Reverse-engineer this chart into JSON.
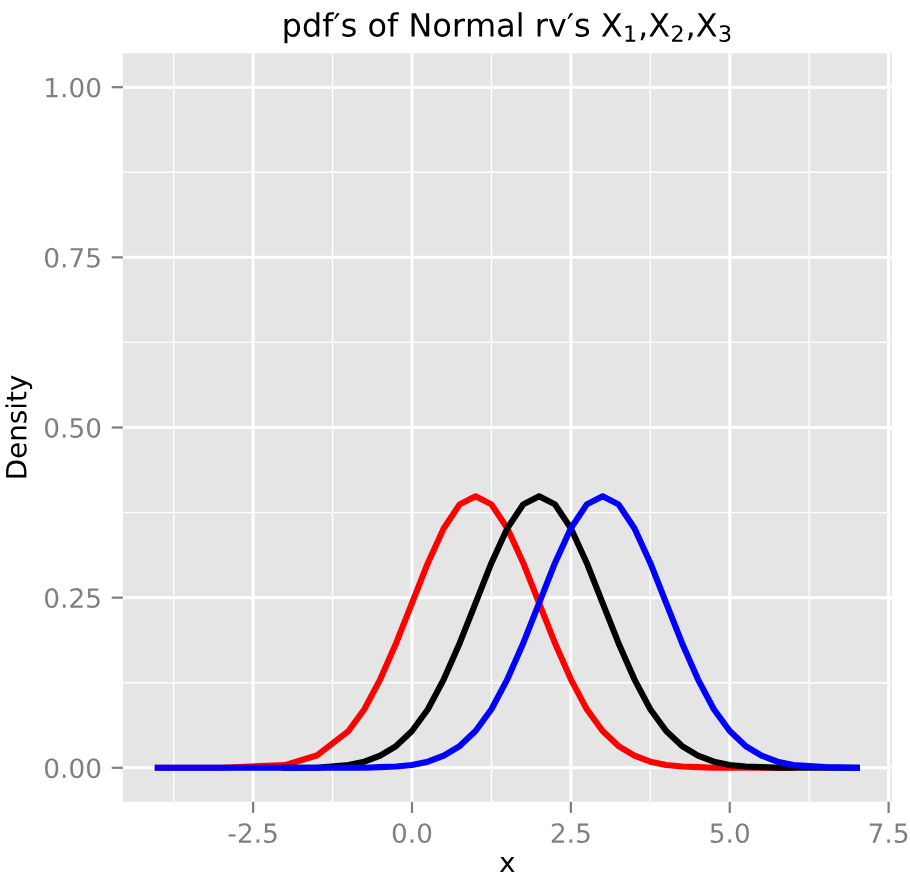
{
  "chart_data": {
    "type": "line",
    "title": "pdf′s of Normal rv′s X$_{1}$,X$_{2}$,X$_{3}$",
    "xlabel": "x",
    "ylabel": "Density",
    "x": [
      -4,
      -3,
      -2,
      -1.5,
      -1,
      -0.75,
      -0.5,
      -0.25,
      0,
      0.25,
      0.5,
      0.75,
      1,
      1.25,
      1.5,
      1.75,
      2,
      2.25,
      2.5,
      2.75,
      3,
      3.25,
      3.5,
      3.75,
      4,
      4.25,
      4.5,
      4.75,
      5,
      5.25,
      5.5,
      5.75,
      6,
      6.5,
      7
    ],
    "series": [
      {
        "color": "#ff0000",
        "values": [
          0,
          0,
          0.004,
          0.018,
          0.054,
          0.086,
          0.13,
          0.183,
          0.242,
          0.301,
          0.352,
          0.387,
          0.399,
          0.387,
          0.352,
          0.301,
          0.242,
          0.183,
          0.13,
          0.086,
          0.054,
          0.032,
          0.018,
          0.009,
          0.004,
          0.002,
          0.001,
          0,
          0,
          0,
          0,
          0,
          0,
          null,
          null
        ]
      },
      {
        "color": "#000000",
        "values": [
          null,
          null,
          0,
          0,
          0.004,
          0.009,
          0.018,
          0.032,
          0.054,
          0.086,
          0.13,
          0.183,
          0.242,
          0.301,
          0.352,
          0.387,
          0.399,
          0.387,
          0.352,
          0.301,
          0.242,
          0.183,
          0.13,
          0.086,
          0.054,
          0.032,
          0.018,
          0.009,
          0.004,
          0.002,
          0.001,
          0,
          0,
          0,
          0
        ]
      },
      {
        "color": "#0000ff",
        "values": [
          0,
          0,
          0,
          0,
          0,
          0,
          0.001,
          0.002,
          0.004,
          0.009,
          0.018,
          0.032,
          0.054,
          0.086,
          0.13,
          0.183,
          0.242,
          0.301,
          0.352,
          0.387,
          0.399,
          0.387,
          0.352,
          0.301,
          0.242,
          0.183,
          0.13,
          0.086,
          0.054,
          0.032,
          0.018,
          0.009,
          0.004,
          0.001,
          0
        ]
      }
    ],
    "xlim": [
      -4.55,
      7.55
    ],
    "ylim": [
      -0.05,
      1.05
    ],
    "xticks": [
      -2.5,
      {
        "value": 0,
        "label": "0.0"
      },
      2.5,
      {
        "value": 5,
        "label": "5.0"
      },
      7.5
    ],
    "yticks": [
      {
        "value": 0,
        "label": "0.00"
      },
      0.25,
      {
        "value": 0.5,
        "label": "0.50"
      },
      0.75,
      {
        "value": 1,
        "label": "1.00"
      }
    ],
    "grid": true,
    "marker": "none",
    "line_style": "solid"
  }
}
